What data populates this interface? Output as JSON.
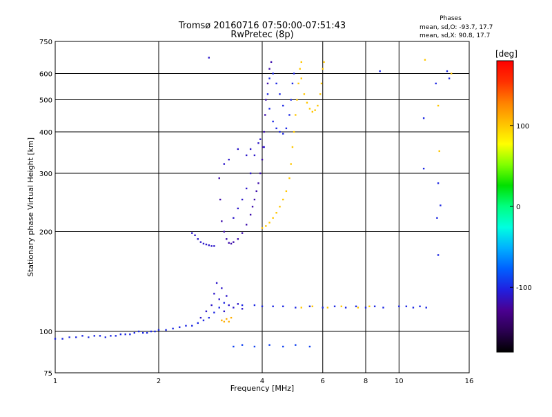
{
  "title_line1": "Tromsø 20160716 07:50:00-07:51:43",
  "title_line2": "RwPretec (8p)",
  "phases": {
    "heading": "Phases",
    "line_o": "mean, sd,O: -93.7, 17.7",
    "line_x": "mean, sd,X:  90.8, 17.7"
  },
  "colorbar": {
    "unit": "[deg]",
    "ticks": [
      100,
      0,
      -100
    ],
    "range": [
      -180,
      180
    ],
    "colors": [
      "#000000",
      "#2a0050",
      "#4a0090",
      "#2020e0",
      "#0060ff",
      "#00b0ff",
      "#00ffe0",
      "#00ff80",
      "#00e000",
      "#80ff00",
      "#ffff00",
      "#ffc000",
      "#ff8000",
      "#ff3000",
      "#ff0000"
    ]
  },
  "chart_data": {
    "type": "scatter",
    "xlabel": "Frequency [MHz]",
    "ylabel": "Stationary phase Virtual Height [km]",
    "xscale": "log",
    "yscale": "log",
    "xlim": [
      1,
      16
    ],
    "ylim": [
      75,
      750
    ],
    "xticks": [
      1,
      2,
      4,
      6,
      8,
      10,
      16
    ],
    "yticks": [
      75,
      100,
      200,
      300,
      400,
      500,
      600,
      750
    ],
    "grid": true,
    "series": [
      {
        "trace": "low-layer",
        "phase": -100,
        "points": [
          [
            1.0,
            95
          ],
          [
            1.05,
            95
          ],
          [
            1.1,
            96
          ],
          [
            1.15,
            96
          ],
          [
            1.2,
            97
          ],
          [
            1.25,
            96
          ],
          [
            1.3,
            97
          ],
          [
            1.35,
            97
          ],
          [
            1.4,
            96
          ],
          [
            1.45,
            97
          ],
          [
            1.5,
            97
          ],
          [
            1.55,
            98
          ],
          [
            1.6,
            98
          ],
          [
            1.65,
            98
          ],
          [
            1.7,
            99
          ],
          [
            1.75,
            100
          ],
          [
            1.8,
            99
          ],
          [
            1.85,
            99
          ],
          [
            1.9,
            100
          ],
          [
            1.95,
            100
          ],
          [
            2.0,
            101
          ],
          [
            2.1,
            101
          ],
          [
            2.2,
            102
          ],
          [
            2.3,
            103
          ],
          [
            2.4,
            104
          ],
          [
            2.5,
            104
          ],
          [
            2.6,
            106
          ],
          [
            2.7,
            108
          ],
          [
            2.8,
            110
          ],
          [
            2.9,
            114
          ],
          [
            3.0,
            118
          ],
          [
            3.1,
            122
          ]
        ]
      },
      {
        "trace": "spread-2.8-3.5",
        "phase": -110,
        "points": [
          [
            2.65,
            110
          ],
          [
            2.75,
            115
          ],
          [
            2.85,
            120
          ],
          [
            2.9,
            130
          ],
          [
            2.95,
            140
          ],
          [
            3.0,
            125
          ],
          [
            3.05,
            135
          ],
          [
            3.1,
            115
          ],
          [
            3.15,
            128
          ],
          [
            3.2,
            120
          ],
          [
            3.3,
            118
          ],
          [
            3.4,
            121
          ],
          [
            3.5,
            117
          ]
        ]
      },
      {
        "trace": "mid-layer",
        "phase": -100,
        "points": [
          [
            3.5,
            120
          ],
          [
            3.8,
            120
          ],
          [
            4.0,
            119
          ],
          [
            4.3,
            119
          ],
          [
            4.6,
            119
          ],
          [
            5.0,
            118
          ],
          [
            5.5,
            119
          ],
          [
            6.0,
            118
          ],
          [
            6.5,
            119
          ],
          [
            7.0,
            118
          ],
          [
            7.5,
            119
          ],
          [
            8.0,
            118
          ],
          [
            8.5,
            119
          ],
          [
            9.0,
            118
          ],
          [
            10.0,
            119
          ],
          [
            10.5,
            119
          ],
          [
            11.0,
            118
          ],
          [
            11.5,
            119
          ],
          [
            12.0,
            118
          ]
        ]
      },
      {
        "trace": "mid-layer-warm",
        "phase": 100,
        "points": [
          [
            5.2,
            118
          ],
          [
            5.6,
            119
          ],
          [
            6.2,
            118
          ],
          [
            6.8,
            119
          ],
          [
            7.6,
            118
          ],
          [
            8.2,
            119
          ]
        ]
      },
      {
        "trace": "yellow-blob",
        "phase": 110,
        "points": [
          [
            3.05,
            108
          ],
          [
            3.1,
            107
          ],
          [
            3.15,
            109
          ],
          [
            3.2,
            107
          ],
          [
            3.25,
            110
          ]
        ]
      },
      {
        "trace": "spread-90",
        "phase": -90,
        "points": [
          [
            3.3,
            90
          ],
          [
            3.5,
            91
          ],
          [
            3.8,
            90
          ],
          [
            4.2,
            91
          ],
          [
            4.6,
            90
          ],
          [
            5.0,
            91
          ],
          [
            5.5,
            90
          ]
        ]
      },
      {
        "trace": "low-echo-2.5",
        "phase": -110,
        "points": [
          [
            2.5,
            198
          ],
          [
            2.55,
            195
          ],
          [
            2.6,
            190
          ],
          [
            2.65,
            186
          ],
          [
            2.7,
            184
          ],
          [
            2.75,
            183
          ],
          [
            2.8,
            182
          ],
          [
            2.85,
            181
          ],
          [
            2.9,
            181
          ]
        ]
      },
      {
        "trace": "o-mode",
        "phase": -120,
        "points": [
          [
            3.0,
            290
          ],
          [
            3.02,
            250
          ],
          [
            3.05,
            215
          ],
          [
            3.1,
            200
          ],
          [
            3.15,
            190
          ],
          [
            3.2,
            185
          ],
          [
            3.25,
            184
          ],
          [
            3.3,
            186
          ],
          [
            3.4,
            190
          ],
          [
            3.5,
            198
          ],
          [
            3.6,
            210
          ],
          [
            3.7,
            225
          ],
          [
            3.75,
            238
          ],
          [
            3.8,
            250
          ],
          [
            3.85,
            265
          ],
          [
            3.9,
            280
          ],
          [
            3.95,
            300
          ],
          [
            4.0,
            330
          ],
          [
            4.02,
            360
          ],
          [
            4.05,
            400
          ],
          [
            4.08,
            450
          ],
          [
            4.1,
            500
          ],
          [
            4.15,
            560
          ],
          [
            4.2,
            620
          ],
          [
            4.25,
            650
          ]
        ]
      },
      {
        "trace": "o-mode-upper",
        "phase": -110,
        "points": [
          [
            3.3,
            220
          ],
          [
            3.4,
            235
          ],
          [
            3.5,
            250
          ],
          [
            3.6,
            270
          ],
          [
            3.7,
            300
          ],
          [
            3.8,
            340
          ],
          [
            3.9,
            370
          ],
          [
            3.95,
            380
          ],
          [
            4.05,
            360
          ]
        ]
      },
      {
        "trace": "o-mode-blob",
        "phase": -100,
        "points": [
          [
            4.15,
            520
          ],
          [
            4.2,
            470
          ],
          [
            4.3,
            430
          ],
          [
            4.4,
            410
          ],
          [
            4.5,
            400
          ],
          [
            4.6,
            395
          ],
          [
            4.7,
            410
          ],
          [
            4.8,
            450
          ],
          [
            4.85,
            500
          ],
          [
            4.9,
            560
          ],
          [
            4.95,
            600
          ],
          [
            4.4,
            560
          ],
          [
            4.3,
            600
          ],
          [
            4.5,
            520
          ],
          [
            4.6,
            480
          ],
          [
            4.2,
            580
          ]
        ]
      },
      {
        "trace": "x-mode",
        "phase": 100,
        "points": [
          [
            4.0,
            205
          ],
          [
            4.1,
            208
          ],
          [
            4.2,
            213
          ],
          [
            4.3,
            220
          ],
          [
            4.4,
            228
          ],
          [
            4.5,
            238
          ],
          [
            4.6,
            250
          ],
          [
            4.7,
            265
          ],
          [
            4.8,
            290
          ],
          [
            4.85,
            320
          ],
          [
            4.9,
            360
          ],
          [
            4.95,
            400
          ],
          [
            5.0,
            450
          ],
          [
            5.05,
            500
          ],
          [
            5.1,
            560
          ],
          [
            5.15,
            620
          ],
          [
            5.2,
            650
          ]
        ]
      },
      {
        "trace": "x-mode-upper",
        "phase": 100,
        "points": [
          [
            5.2,
            580
          ],
          [
            5.3,
            520
          ],
          [
            5.4,
            490
          ],
          [
            5.5,
            470
          ],
          [
            5.6,
            460
          ],
          [
            5.7,
            465
          ],
          [
            5.8,
            480
          ],
          [
            5.9,
            520
          ],
          [
            5.95,
            560
          ],
          [
            6.0,
            620
          ],
          [
            6.05,
            650
          ]
        ]
      },
      {
        "trace": "scatter-far",
        "phase": -100,
        "points": [
          [
            8.8,
            610
          ],
          [
            11.8,
            440
          ],
          [
            11.8,
            310
          ],
          [
            12.8,
            560
          ],
          [
            13.0,
            280
          ],
          [
            13.0,
            170
          ],
          [
            13.8,
            610
          ],
          [
            14.0,
            580
          ],
          [
            12.9,
            220
          ],
          [
            13.2,
            240
          ]
        ]
      },
      {
        "trace": "scatter-far-warm",
        "phase": 100,
        "points": [
          [
            11.9,
            660
          ],
          [
            13.0,
            480
          ],
          [
            13.1,
            350
          ],
          [
            14.2,
            600
          ]
        ]
      },
      {
        "trace": "isolated",
        "phase": -110,
        "points": [
          [
            2.8,
            670
          ],
          [
            3.4,
            355
          ],
          [
            3.6,
            340
          ],
          [
            3.7,
            355
          ],
          [
            3.2,
            330
          ],
          [
            3.1,
            320
          ]
        ]
      }
    ]
  }
}
